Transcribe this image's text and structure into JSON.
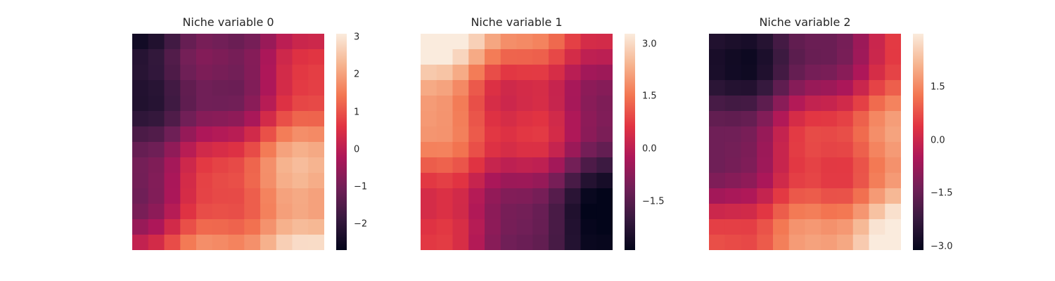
{
  "chart_data": [
    {
      "type": "heatmap",
      "title": "Niche variable 0",
      "gradient": "bottom-right-high",
      "grid": false,
      "colorbar": {
        "range": [
          -2.7,
          3.1
        ],
        "ticks": [
          -2,
          -1,
          0,
          1,
          2,
          3
        ],
        "tick_labels": [
          "−2",
          "−1",
          "0",
          "1",
          "2",
          "3"
        ]
      }
    },
    {
      "type": "heatmap",
      "title": "Niche variable 1",
      "gradient": "top-left-high",
      "grid": false,
      "colorbar": {
        "range": [
          -2.9,
          3.3
        ],
        "ticks": [
          -1.5,
          0.0,
          1.5,
          3.0
        ],
        "tick_labels": [
          "−1.5",
          "0.0",
          "1.5",
          "3.0"
        ]
      }
    },
    {
      "type": "heatmap",
      "title": "Niche variable 2",
      "gradient": "bottom-right-high",
      "grid": false,
      "colorbar": {
        "range": [
          -3.1,
          3.0
        ],
        "ticks": [
          -3.0,
          -1.5,
          0.0,
          1.5
        ],
        "tick_labels": [
          "−3.0",
          "−1.5",
          "0.0",
          "1.5"
        ]
      }
    }
  ],
  "colormap": [
    "#03051a",
    "#36193e",
    "#701f57",
    "#ad1759",
    "#e13342",
    "#f37651",
    "#f6b48f",
    "#faebdd"
  ]
}
